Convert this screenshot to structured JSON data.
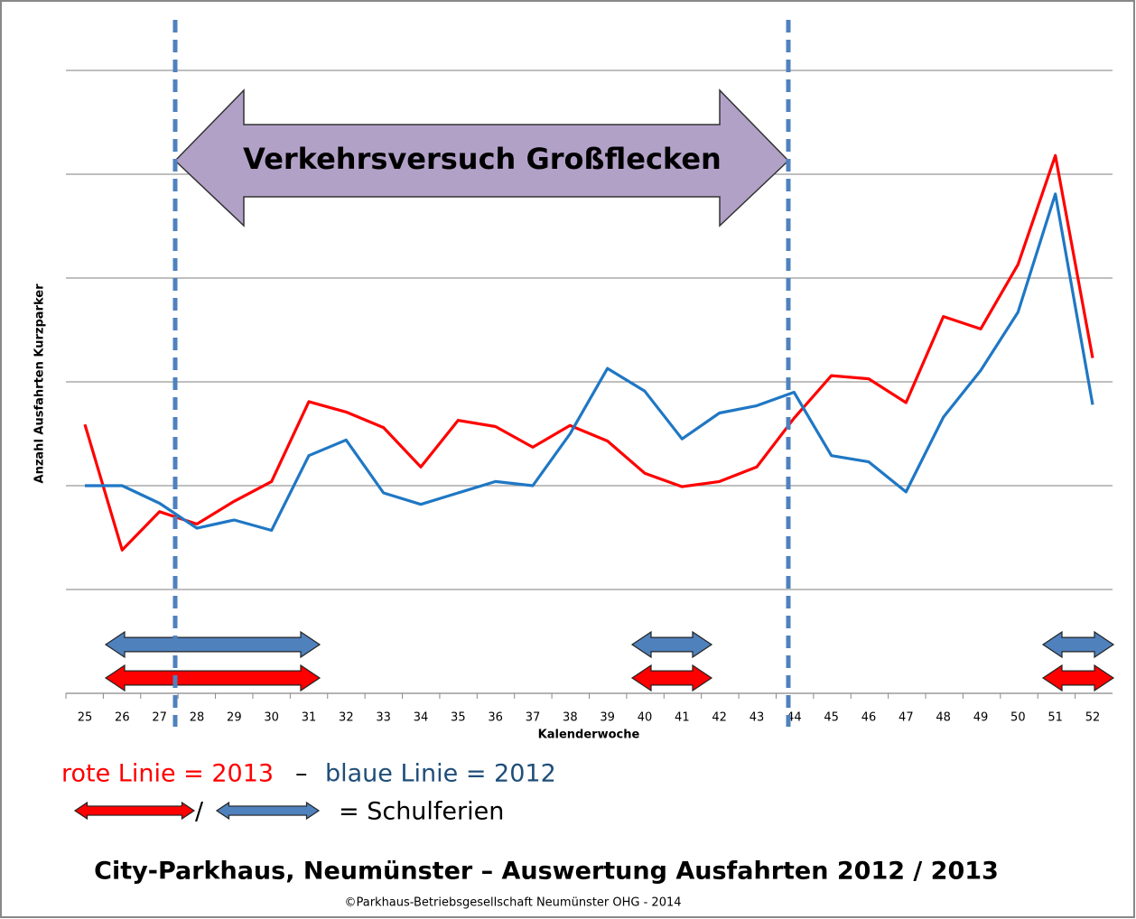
{
  "chart_data": {
    "type": "line",
    "title": "City-Parkhaus, Neumünster – Auswertung Ausfahrten 2012 / 2013",
    "copyright": "©Parkhaus-Betriebsgesellschaft Neumünster OHG - 2014",
    "annotation": "Verkehrsversuch Großflecken",
    "x_label": "Kalenderwoche",
    "y_label": "Anzahl Ausfahrten Kurzparker",
    "legend": {
      "red": "rote Linie = 2013",
      "dash": "–",
      "blue": "blaue Linie = 2012",
      "slash": "/",
      "holidays": "= Schulferien"
    },
    "categories": [
      "25",
      "26",
      "27",
      "28",
      "29",
      "30",
      "31",
      "32",
      "33",
      "34",
      "35",
      "36",
      "37",
      "38",
      "39",
      "40",
      "41",
      "42",
      "43",
      "44",
      "45",
      "46",
      "47",
      "48",
      "49",
      "50",
      "51",
      "52"
    ],
    "series": [
      {
        "name": "2013",
        "color": "#ff0000",
        "values": [
          2.59,
          1.38,
          1.75,
          1.63,
          1.85,
          2.04,
          2.81,
          2.71,
          2.56,
          2.18,
          2.63,
          2.57,
          2.37,
          2.58,
          2.43,
          2.12,
          1.99,
          2.04,
          2.18,
          2.65,
          3.06,
          3.03,
          2.8,
          3.63,
          3.51,
          4.13,
          5.18,
          3.23
        ]
      },
      {
        "name": "2012",
        "color": "#1f77c4",
        "values": [
          2.0,
          2.0,
          1.83,
          1.59,
          1.67,
          1.57,
          2.29,
          2.44,
          1.93,
          1.82,
          1.93,
          2.04,
          2.0,
          2.5,
          3.13,
          2.91,
          2.45,
          2.7,
          2.77,
          2.9,
          2.29,
          2.23,
          1.94,
          2.66,
          3.11,
          3.67,
          4.81,
          2.78
        ]
      }
    ],
    "ylim": [
      0,
      6
    ],
    "yticks": [
      0,
      1,
      2,
      3,
      4,
      5,
      6
    ],
    "grid": true
  }
}
